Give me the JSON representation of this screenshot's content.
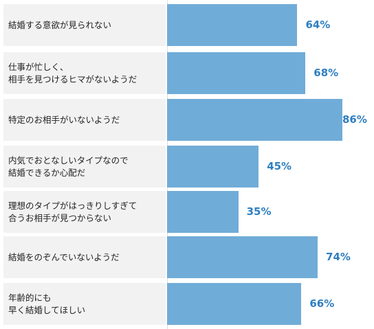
{
  "chart_data": {
    "type": "bar",
    "orientation": "horizontal",
    "categories": [
      [
        "結婚する意欲が見られない"
      ],
      [
        "仕事が忙しく、",
        "相手を見つけるヒマがないようだ"
      ],
      [
        "特定のお相手がいないようだ"
      ],
      [
        "内気でおとなしいタイプなので",
        "結婚できるか心配だ"
      ],
      [
        "理想のタイプがはっきりしすぎて",
        "合うお相手が見つからない"
      ],
      [
        "結婚をのぞんでいないようだ"
      ],
      [
        "年齢的にも",
        "早く結婚してほしい"
      ]
    ],
    "values": [
      64,
      68,
      86,
      45,
      35,
      74,
      66
    ],
    "value_labels": [
      "64%",
      "68%",
      "86%",
      "45%",
      "35%",
      "74%",
      "66%"
    ],
    "xlim": [
      0,
      100
    ],
    "bar_color": "#70acd8",
    "label_bg": "#f2f2f2",
    "value_color": "#2f7fc0",
    "grid": false,
    "legend": "none"
  }
}
